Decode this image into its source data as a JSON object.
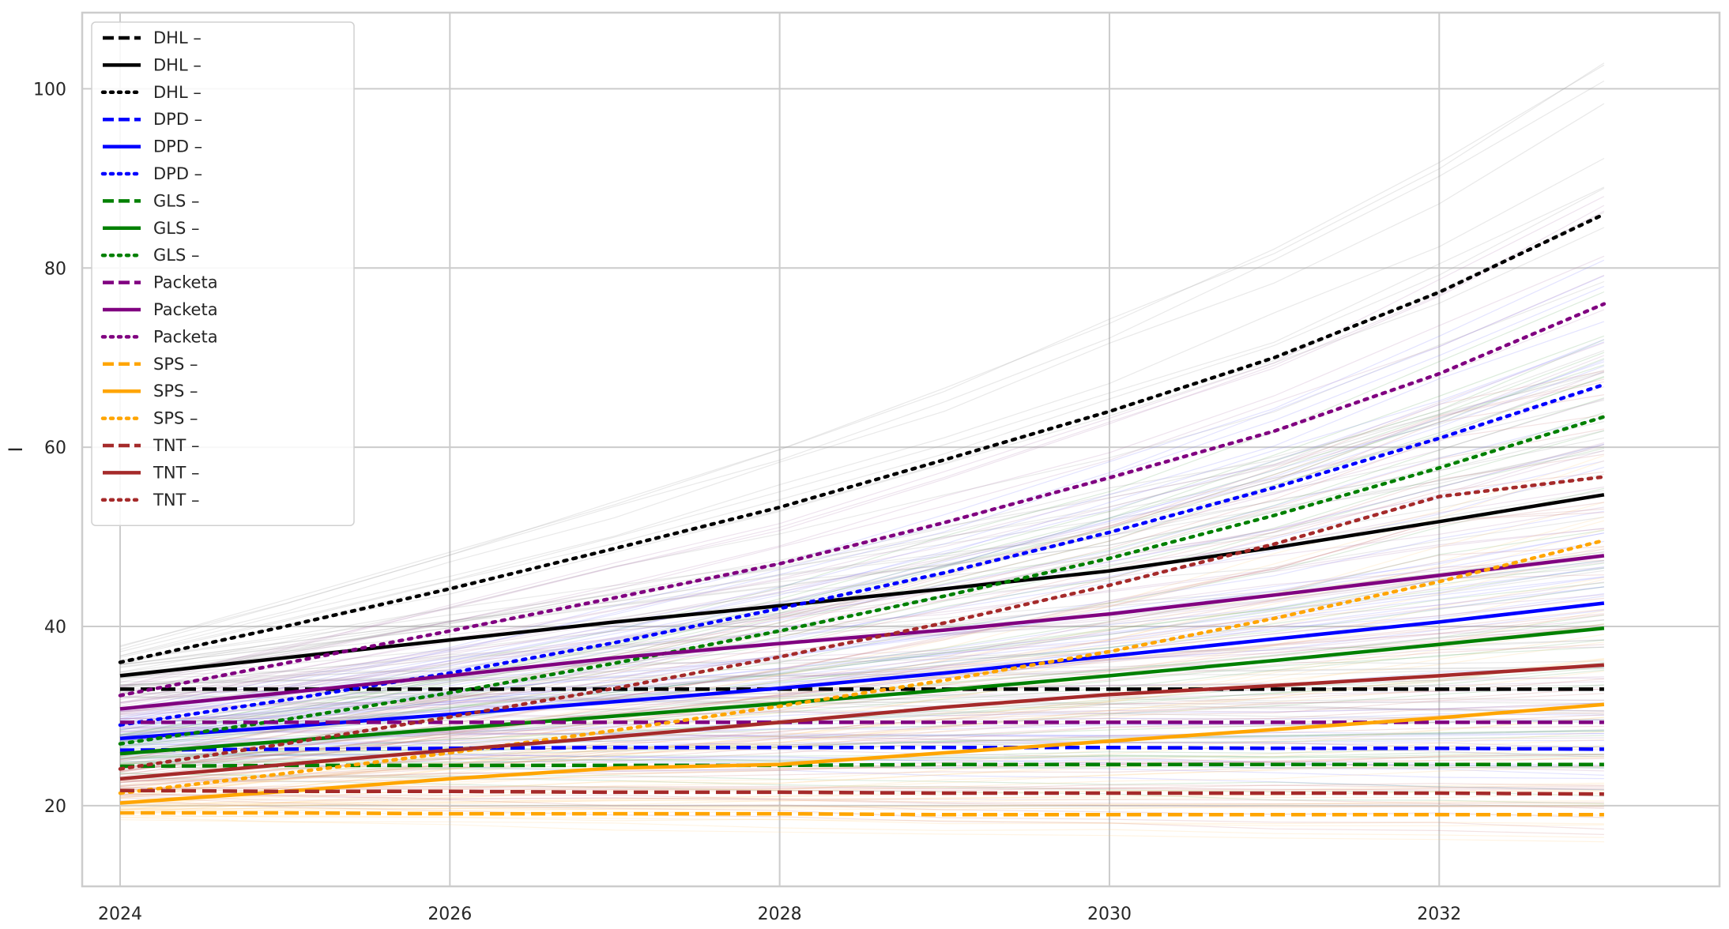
{
  "chart_data": {
    "type": "line",
    "ylabel": "I",
    "xlabel": "",
    "title": "",
    "xlim": [
      2023.77,
      2033.7
    ],
    "ylim": [
      11,
      108.5
    ],
    "xticks": [
      2024,
      2026,
      2028,
      2030,
      2032
    ],
    "yticks": [
      20,
      40,
      60,
      80,
      100
    ],
    "grid": true,
    "legend_position": "upper-left",
    "x": [
      2024,
      2025,
      2026,
      2027,
      2028,
      2029,
      2030,
      2031,
      2032,
      2033
    ],
    "series": [
      {
        "name": "DHL –",
        "color": "#000000",
        "style": "dashed",
        "values": [
          33.0,
          33.0,
          33.0,
          33.0,
          33.0,
          33.0,
          33.0,
          33.0,
          33.0,
          33.0
        ]
      },
      {
        "name": "DHL –",
        "color": "#000000",
        "style": "solid",
        "values": [
          34.5,
          36.5,
          38.5,
          40.5,
          42.3,
          44.2,
          46.2,
          48.8,
          51.7,
          54.7
        ]
      },
      {
        "name": "DHL –",
        "color": "#000000",
        "style": "dotted",
        "values": [
          36.0,
          40.0,
          44.2,
          48.7,
          53.3,
          58.6,
          64.0,
          70.0,
          77.3,
          86.0
        ]
      },
      {
        "name": "DPD –",
        "color": "#0000ff",
        "style": "dashed",
        "values": [
          26.2,
          26.3,
          26.4,
          26.5,
          26.5,
          26.5,
          26.5,
          26.4,
          26.4,
          26.3
        ]
      },
      {
        "name": "DPD –",
        "color": "#0000ff",
        "style": "solid",
        "values": [
          27.5,
          28.8,
          30.2,
          31.6,
          33.1,
          34.8,
          36.7,
          38.6,
          40.5,
          42.6
        ]
      },
      {
        "name": "DPD –",
        "color": "#0000ff",
        "style": "dotted",
        "values": [
          29.0,
          31.8,
          34.8,
          38.2,
          42.0,
          46.0,
          50.5,
          55.5,
          61.0,
          67.0
        ]
      },
      {
        "name": "GLS –",
        "color": "#008000",
        "style": "dashed",
        "values": [
          24.4,
          24.5,
          24.5,
          24.5,
          24.5,
          24.6,
          24.6,
          24.6,
          24.6,
          24.6
        ]
      },
      {
        "name": "GLS –",
        "color": "#008000",
        "style": "solid",
        "values": [
          25.8,
          27.2,
          28.6,
          30.0,
          31.4,
          32.9,
          34.5,
          36.2,
          38.0,
          39.8
        ]
      },
      {
        "name": "GLS –",
        "color": "#008000",
        "style": "dotted",
        "values": [
          26.9,
          29.6,
          32.6,
          35.9,
          39.5,
          43.4,
          47.6,
          52.4,
          57.7,
          63.4
        ]
      },
      {
        "name": "Packeta",
        "color": "#800080",
        "style": "dashed",
        "values": [
          29.3,
          29.3,
          29.3,
          29.3,
          29.3,
          29.3,
          29.3,
          29.3,
          29.3,
          29.3
        ]
      },
      {
        "name": "Packeta",
        "color": "#800080",
        "style": "solid",
        "values": [
          30.8,
          32.6,
          34.5,
          36.5,
          38.1,
          39.6,
          41.4,
          43.5,
          45.7,
          47.9
        ]
      },
      {
        "name": "Packeta",
        "color": "#800080",
        "style": "dotted",
        "values": [
          32.3,
          35.9,
          39.5,
          43.2,
          47.0,
          51.6,
          56.6,
          61.8,
          68.2,
          76.0
        ]
      },
      {
        "name": "SPS –",
        "color": "#ffa500",
        "style": "dashed",
        "values": [
          19.2,
          19.2,
          19.1,
          19.1,
          19.1,
          19.0,
          19.0,
          19.0,
          19.0,
          19.0
        ]
      },
      {
        "name": "SPS –",
        "color": "#ffa500",
        "style": "solid",
        "values": [
          20.3,
          21.6,
          23.0,
          24.2,
          24.6,
          25.9,
          27.2,
          28.5,
          29.8,
          31.3
        ]
      },
      {
        "name": "SPS –",
        "color": "#ffa500",
        "style": "dotted",
        "values": [
          21.4,
          23.6,
          25.9,
          28.4,
          31.1,
          34.0,
          37.2,
          40.9,
          45.0,
          49.6
        ]
      },
      {
        "name": "TNT –",
        "color": "#a52a2a",
        "style": "dashed",
        "values": [
          21.7,
          21.6,
          21.6,
          21.5,
          21.5,
          21.4,
          21.4,
          21.4,
          21.4,
          21.3
        ]
      },
      {
        "name": "TNT –",
        "color": "#a52a2a",
        "style": "solid",
        "values": [
          23.0,
          24.6,
          26.2,
          27.7,
          29.3,
          31.0,
          32.4,
          33.4,
          34.5,
          35.7
        ]
      },
      {
        "name": "TNT –",
        "color": "#a52a2a",
        "style": "dotted",
        "values": [
          24.1,
          26.9,
          29.9,
          33.1,
          36.6,
          40.4,
          44.6,
          49.2,
          54.5,
          56.7
        ]
      }
    ]
  }
}
